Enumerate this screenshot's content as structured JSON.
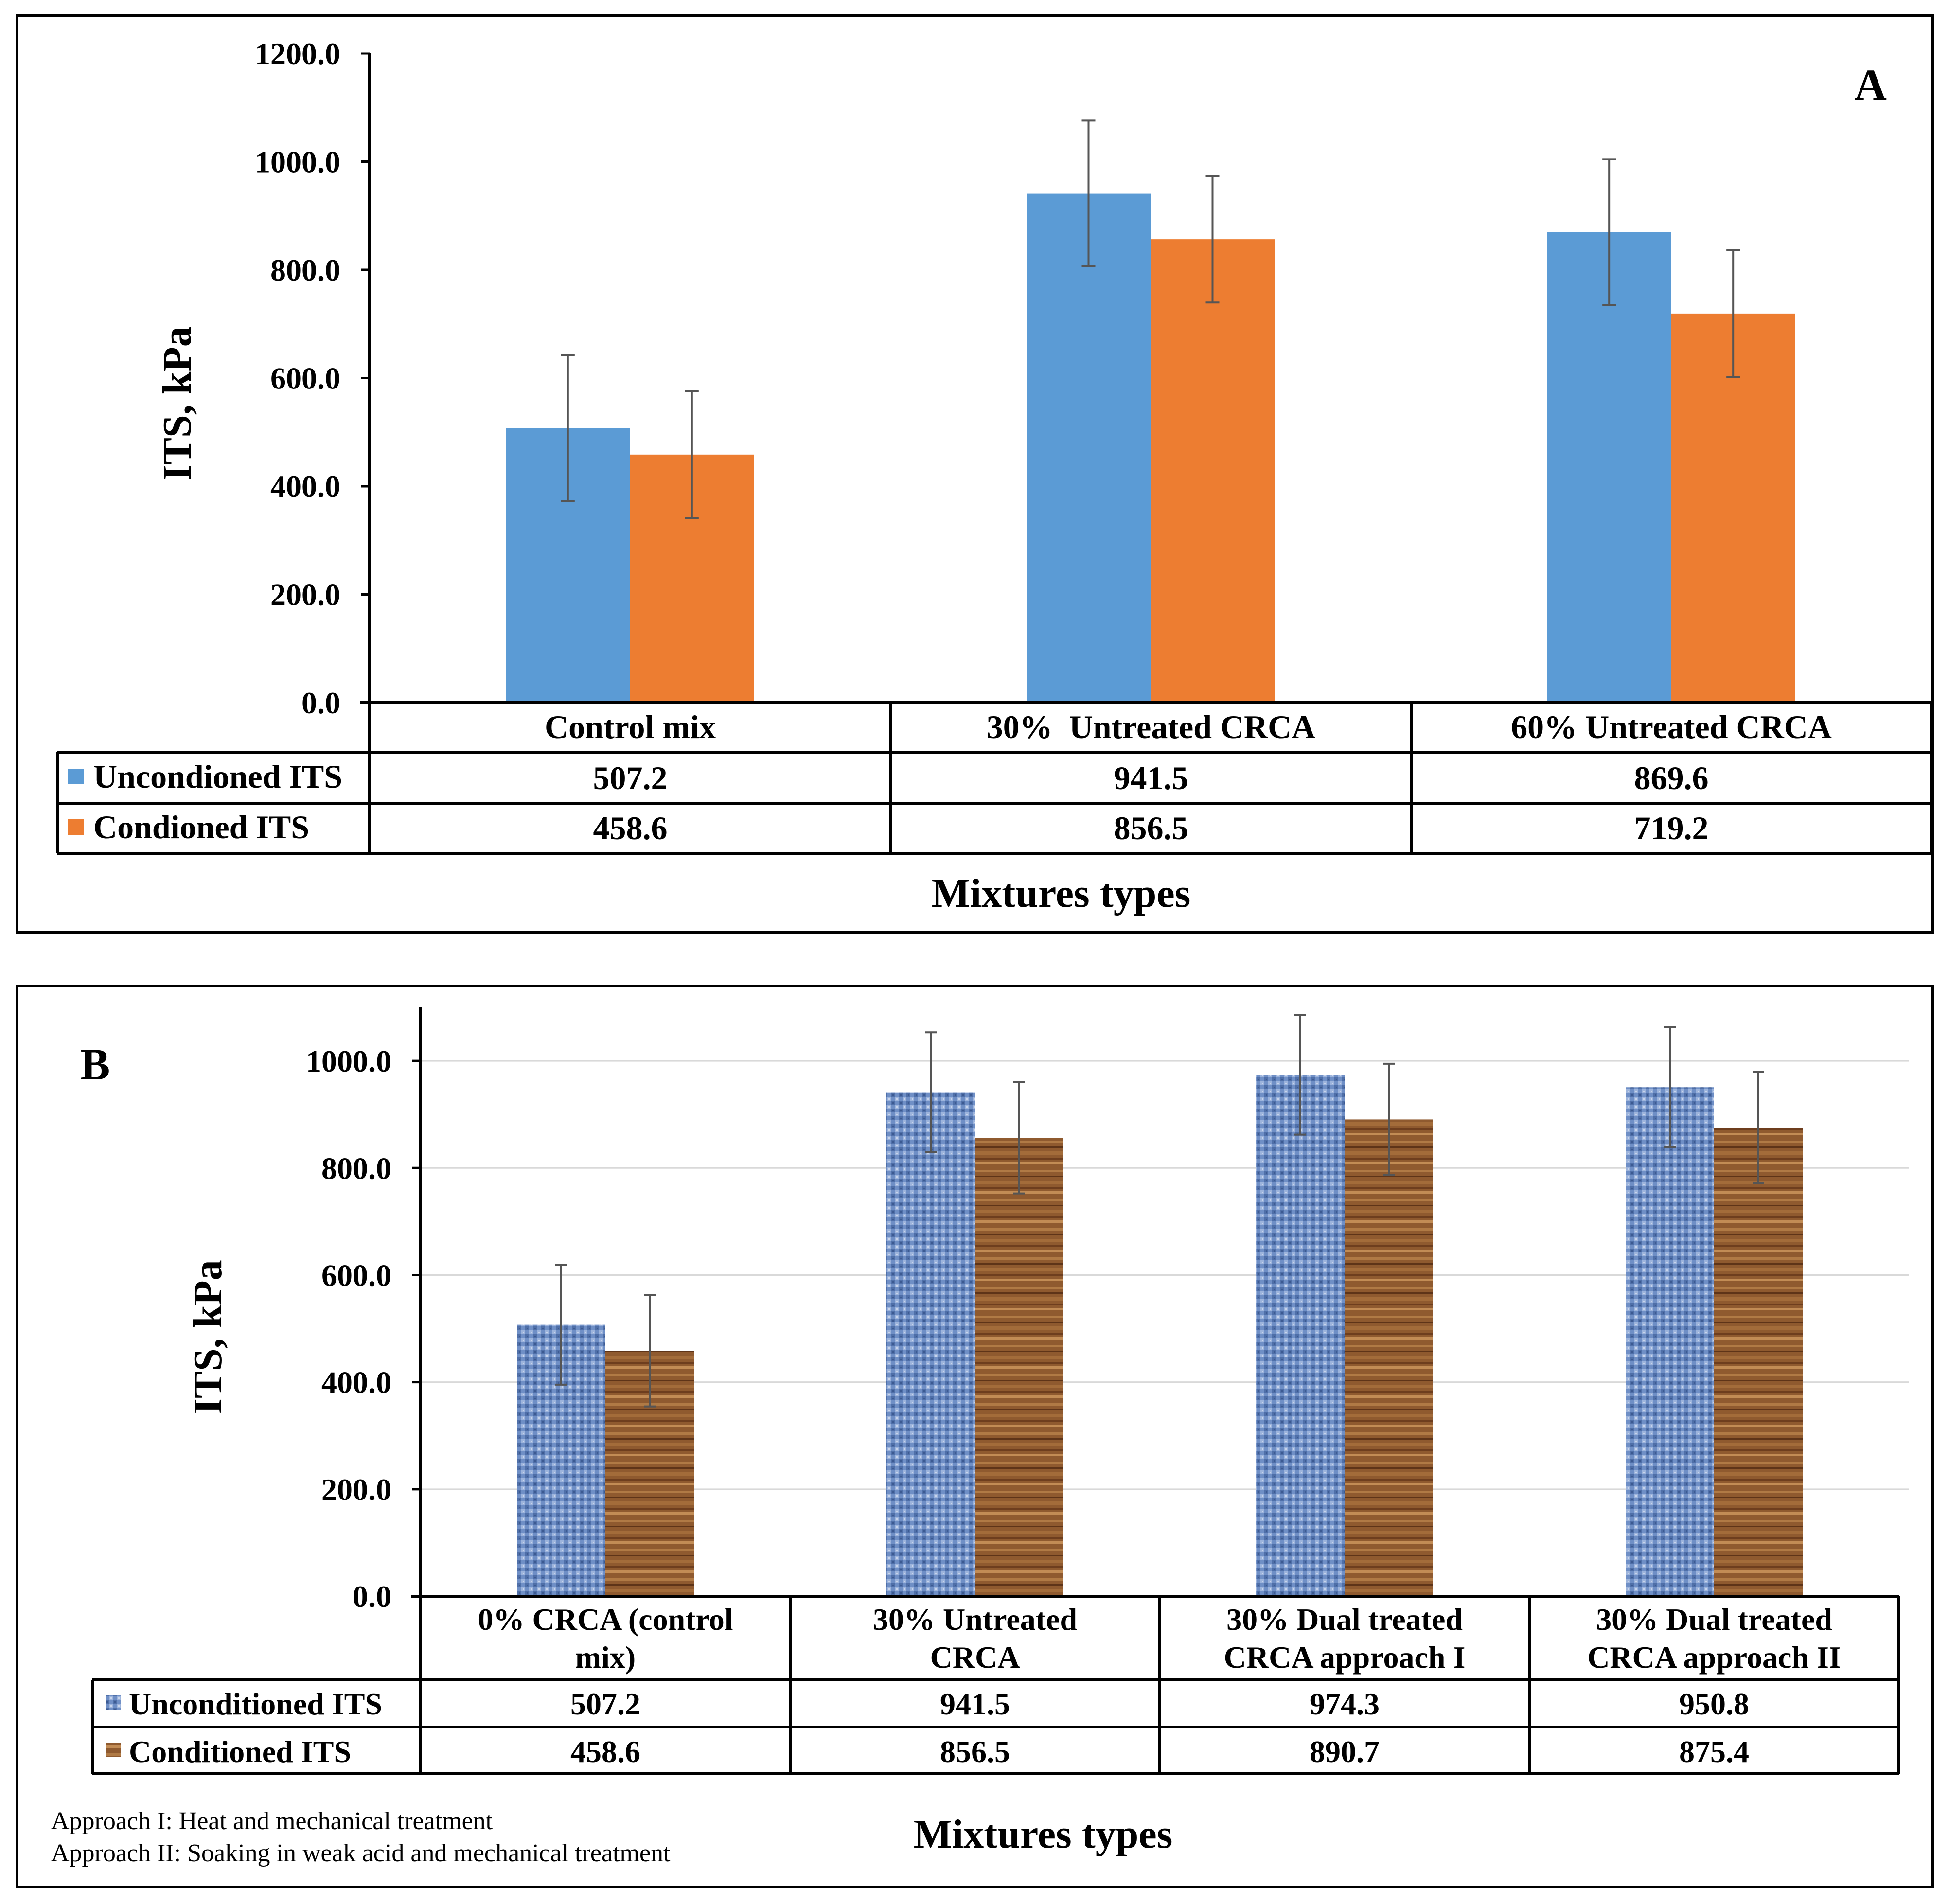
{
  "chart_data": [
    {
      "panel": "A",
      "type": "bar",
      "categories": [
        "Control mix",
        "30%  Untreated CRCA",
        "60% Untreated CRCA"
      ],
      "series": [
        {
          "name": "Uncondioned ITS",
          "values": [
            507.2,
            941.5,
            869.6
          ],
          "value_labels": [
            "507.2",
            "941.5",
            "869.6"
          ],
          "errors": [
            135,
            135,
            135
          ],
          "color": "#5b9bd5"
        },
        {
          "name": "Condioned ITS",
          "values": [
            458.6,
            856.5,
            719.2
          ],
          "value_labels": [
            "458.6",
            "856.5",
            "719.2"
          ],
          "errors": [
            117,
            117,
            117
          ],
          "color": "#ed7d31"
        }
      ],
      "ylabel": "ITS, kPa",
      "xlabel": "Mixtures types",
      "ylim": [
        0,
        1200
      ],
      "yticks": [
        "0.0",
        "200.0",
        "400.0",
        "600.0",
        "800.0",
        "1000.0",
        "1200.0"
      ],
      "grid": false,
      "legend": "data-table"
    },
    {
      "panel": "B",
      "type": "bar",
      "categories": [
        "0% CRCA (control mix)",
        "30% Untreated CRCA",
        "30% Dual treated CRCA approach I",
        "30% Dual treated CRCA approach II"
      ],
      "category_lines": [
        [
          "0% CRCA (control",
          "mix)"
        ],
        [
          "30% Untreated",
          "CRCA"
        ],
        [
          "30% Dual treated",
          "CRCA approach I"
        ],
        [
          "30% Dual treated",
          "CRCA approach II"
        ]
      ],
      "series": [
        {
          "name": "Unconditioned ITS",
          "values": [
            507.2,
            941.5,
            974.3,
            950.8
          ],
          "value_labels": [
            "507.2",
            "941.5",
            "974.3",
            "950.8"
          ],
          "errors": [
            112,
            112,
            112,
            112
          ],
          "color": "#6f8fc6"
        },
        {
          "name": "Conditioned ITS",
          "values": [
            458.6,
            856.5,
            890.7,
            875.4
          ],
          "value_labels": [
            "458.6",
            "856.5",
            "890.7",
            "875.4"
          ],
          "errors": [
            104,
            104,
            104,
            104
          ],
          "color": "#8f5a2f"
        }
      ],
      "ylabel": "ITS, kPa",
      "xlabel": "Mixtures types",
      "ylim": [
        0,
        1100
      ],
      "yticks": [
        "0.0",
        "200.0",
        "400.0",
        "600.0",
        "800.0",
        "1000.0"
      ],
      "grid": true,
      "legend": "data-table",
      "notes": [
        "Approach I: Heat and mechanical treatment",
        "Approach II: Soaking in weak acid and mechanical treatment"
      ]
    }
  ]
}
